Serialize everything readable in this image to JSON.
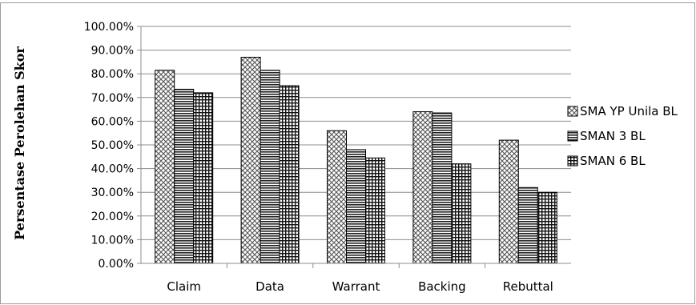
{
  "chart_data": {
    "type": "bar",
    "title": "",
    "xlabel": "",
    "ylabel": "Persentase Perolehan Skor",
    "categories": [
      "Claim",
      "Data",
      "Warrant",
      "Backing",
      "Rebuttal"
    ],
    "series": [
      {
        "name": "SMA YP Unila BL",
        "values": [
          81.5,
          87.0,
          56.0,
          64.0,
          52.0
        ],
        "pattern": "diamond-check"
      },
      {
        "name": "SMAN 3 BL",
        "values": [
          73.5,
          81.5,
          48.0,
          63.5,
          32.0
        ],
        "pattern": "horizontal-lines"
      },
      {
        "name": "SMAN 6 BL",
        "values": [
          72.0,
          75.0,
          44.5,
          42.0,
          30.0
        ],
        "pattern": "grid"
      }
    ],
    "yticks": [
      "0.00%",
      "10.00%",
      "20.00%",
      "30.00%",
      "40.00%",
      "50.00%",
      "60.00%",
      "70.00%",
      "80.00%",
      "90.00%",
      "100.00%"
    ],
    "ylim": [
      0,
      100
    ],
    "grid": true,
    "legend_position": "right",
    "colors": {
      "gridline": "#8c8c8c",
      "bar_stroke": "#000000",
      "frame": "#9a9a9a"
    }
  }
}
